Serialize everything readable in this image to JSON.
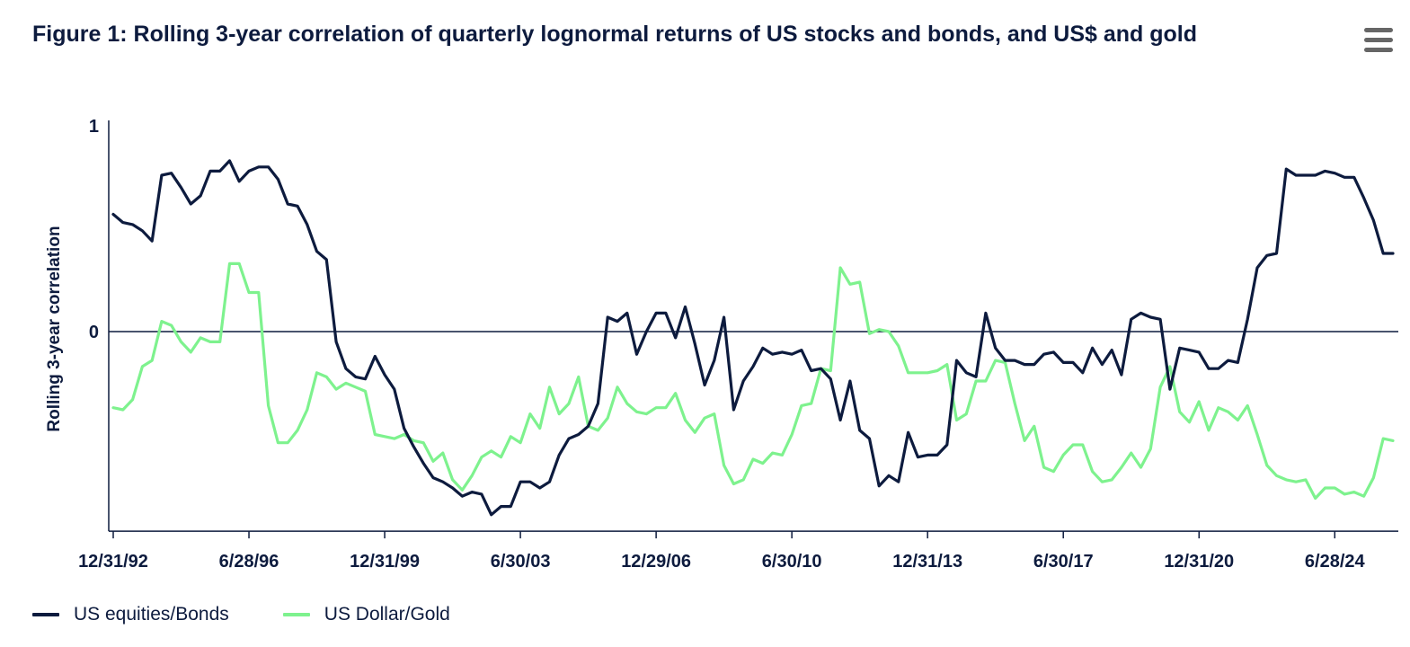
{
  "title": "Figure 1: Rolling 3-year correlation of quarterly lognormal returns of US stocks and bonds, and US$ and gold",
  "menu_icon": "hamburger-menu-icon",
  "chart_data": {
    "type": "line",
    "title": "Figure 1: Rolling 3-year correlation of quarterly lognormal returns of US stocks and bonds, and US$ and gold",
    "ylabel": "Rolling 3-year correlation",
    "xlabel": "",
    "ylim": [
      -0.97,
      1
    ],
    "y_ticks": [
      {
        "value": 1,
        "label": "1"
      },
      {
        "value": 0,
        "label": "0"
      }
    ],
    "x_ticks": [
      "12/31/92",
      "6/28/96",
      "12/31/99",
      "6/30/03",
      "12/29/06",
      "6/30/10",
      "12/31/13",
      "6/30/17",
      "12/31/20",
      "6/28/24"
    ],
    "x_tick_quarters": [
      0,
      14,
      28,
      42,
      56,
      70,
      84,
      98,
      112,
      126
    ],
    "legend_position": "bottom-left",
    "series": [
      {
        "name": "US equities/Bonds",
        "color": "#0d1b3e",
        "values": [
          0.57,
          0.53,
          0.52,
          0.49,
          0.44,
          0.76,
          0.77,
          0.7,
          0.62,
          0.66,
          0.78,
          0.78,
          0.83,
          0.73,
          0.78,
          0.8,
          0.8,
          0.74,
          0.62,
          0.61,
          0.52,
          0.39,
          0.35,
          -0.05,
          -0.18,
          -0.22,
          -0.23,
          -0.12,
          -0.21,
          -0.28,
          -0.47,
          -0.56,
          -0.64,
          -0.71,
          -0.73,
          -0.76,
          -0.8,
          -0.78,
          -0.79,
          -0.89,
          -0.85,
          -0.85,
          -0.73,
          -0.73,
          -0.76,
          -0.73,
          -0.6,
          -0.52,
          -0.5,
          -0.46,
          -0.35,
          0.07,
          0.05,
          0.09,
          -0.11,
          0,
          0.09,
          0.09,
          -0.03,
          0.12,
          -0.06,
          -0.26,
          -0.14,
          0.07,
          -0.38,
          -0.24,
          -0.17,
          -0.08,
          -0.11,
          -0.1,
          -0.11,
          -0.09,
          -0.19,
          -0.18,
          -0.23,
          -0.43,
          -0.24,
          -0.48,
          -0.52,
          -0.75,
          -0.7,
          -0.73,
          -0.49,
          -0.61,
          -0.6,
          -0.6,
          -0.55,
          -0.14,
          -0.2,
          -0.22,
          0.09,
          -0.08,
          -0.14,
          -0.14,
          -0.16,
          -0.16,
          -0.11,
          -0.1,
          -0.15,
          -0.15,
          -0.2,
          -0.08,
          -0.16,
          -0.09,
          -0.21,
          0.06,
          0.09,
          0.07,
          0.06,
          -0.28,
          -0.08,
          -0.09,
          -0.1,
          -0.18,
          -0.18,
          -0.14,
          -0.15,
          0.06,
          0.31,
          0.37,
          0.38,
          0.79,
          0.76,
          0.76,
          0.76,
          0.78,
          0.77,
          0.75,
          0.75,
          0.65,
          0.54,
          0.38,
          0.38
        ]
      },
      {
        "name": "US Dollar/Gold",
        "color": "#7ef28e",
        "values": [
          -0.37,
          -0.38,
          -0.33,
          -0.17,
          -0.14,
          0.05,
          0.03,
          -0.05,
          -0.1,
          -0.03,
          -0.05,
          -0.05,
          0.33,
          0.33,
          0.19,
          0.19,
          -0.36,
          -0.54,
          -0.54,
          -0.48,
          -0.38,
          -0.2,
          -0.22,
          -0.28,
          -0.25,
          -0.27,
          -0.29,
          -0.5,
          -0.51,
          -0.52,
          -0.5,
          -0.53,
          -0.54,
          -0.63,
          -0.59,
          -0.72,
          -0.77,
          -0.7,
          -0.61,
          -0.58,
          -0.61,
          -0.51,
          -0.54,
          -0.4,
          -0.47,
          -0.27,
          -0.4,
          -0.35,
          -0.22,
          -0.46,
          -0.48,
          -0.42,
          -0.27,
          -0.35,
          -0.39,
          -0.4,
          -0.37,
          -0.37,
          -0.3,
          -0.43,
          -0.49,
          -0.42,
          -0.4,
          -0.65,
          -0.74,
          -0.72,
          -0.62,
          -0.64,
          -0.59,
          -0.6,
          -0.5,
          -0.36,
          -0.35,
          -0.18,
          -0.19,
          0.31,
          0.23,
          0.24,
          -0.01,
          0.01,
          0,
          -0.07,
          -0.2,
          -0.2,
          -0.2,
          -0.19,
          -0.16,
          -0.43,
          -0.4,
          -0.24,
          -0.24,
          -0.14,
          -0.15,
          -0.35,
          -0.53,
          -0.46,
          -0.66,
          -0.68,
          -0.6,
          -0.55,
          -0.55,
          -0.68,
          -0.73,
          -0.72,
          -0.66,
          -0.59,
          -0.66,
          -0.57,
          -0.27,
          -0.17,
          -0.39,
          -0.44,
          -0.34,
          -0.48,
          -0.37,
          -0.39,
          -0.43,
          -0.36,
          -0.5,
          -0.65,
          -0.7,
          -0.72,
          -0.73,
          -0.72,
          -0.81,
          -0.76,
          -0.76,
          -0.79,
          -0.78,
          -0.8,
          -0.71,
          -0.52,
          -0.53
        ]
      }
    ]
  }
}
